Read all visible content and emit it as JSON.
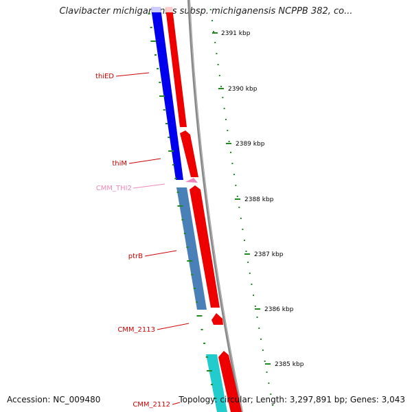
{
  "title": "Clavibacter michiganensis subsp. michiganensis NCPPB 382, co...",
  "accession": "Accession: NC_009480",
  "summary": "Topology: circular; Length: 3,297,891 bp; Genes: 3,043",
  "scale_labels": [
    "2391 kbp",
    "2390 kbp",
    "2389 kbp",
    "2388 kbp",
    "2387 kbp",
    "2386 kbp",
    "2385 kbp"
  ],
  "genes": [
    {
      "name": "thiED",
      "color": "#cc0000"
    },
    {
      "name": "thiM",
      "color": "#cc0000"
    },
    {
      "name": "CMM_THI2",
      "color": "#ee88bb"
    },
    {
      "name": "ptrB",
      "color": "#cc0000"
    },
    {
      "name": "CMM_2113",
      "color": "#cc0000"
    },
    {
      "name": "CMM_2112",
      "color": "#cc0000"
    }
  ],
  "colors": {
    "cds_forward": "#ee0000",
    "gene_blue": "#0000ee",
    "gene_steelblue": "#4a80b8",
    "gene_cyan": "#22cccc",
    "tick": "#228822",
    "backbone": "#888888"
  }
}
